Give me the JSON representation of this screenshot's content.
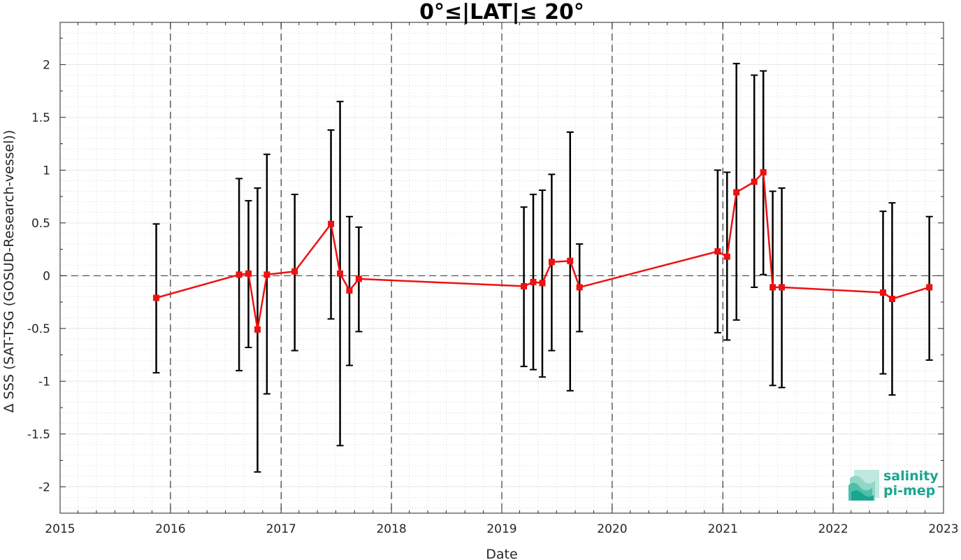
{
  "chart_data": {
    "type": "line",
    "title": "0°≤|LAT|≤ 20°",
    "xlabel": "Date",
    "ylabel": "Δ SSS (SAT-TSG (GOSUD-Research-vessel))",
    "xlim": [
      "2015-01-01",
      "2023-01-01"
    ],
    "ylim": [
      -2.25,
      2.4
    ],
    "x_ticks": [
      "2015",
      "2016",
      "2017",
      "2018",
      "2019",
      "2020",
      "2021",
      "2022",
      "2023"
    ],
    "y_ticks": [
      {
        "value": -2,
        "label": "-2"
      },
      {
        "value": -1.5,
        "label": "-1.5"
      },
      {
        "value": -1,
        "label": "-1"
      },
      {
        "value": -0.5,
        "label": "-0.5"
      },
      {
        "value": 0,
        "label": "0"
      },
      {
        "value": 0.5,
        "label": "0.5"
      },
      {
        "value": 1,
        "label": "1"
      },
      {
        "value": 1.5,
        "label": "1.5"
      },
      {
        "value": 2,
        "label": "2"
      }
    ],
    "vertical_dashed_lines": [
      "2016-01-01",
      "2017-01-01",
      "2018-01-01",
      "2019-01-01",
      "2020-01-01",
      "2021-01-01",
      "2022-01-01"
    ],
    "zero_line": true,
    "grid": true,
    "minor_grid": true,
    "series": [
      {
        "color": "#ee1111",
        "marker": "square",
        "errorbar_color": "#000000",
        "points": [
          {
            "x": "2015-11-15",
            "y": -0.21,
            "low": -0.92,
            "high": 0.49
          },
          {
            "x": "2016-08-15",
            "y": 0.01,
            "low": -0.9,
            "high": 0.92
          },
          {
            "x": "2016-09-15",
            "y": 0.02,
            "low": -0.68,
            "high": 0.71
          },
          {
            "x": "2016-10-15",
            "y": -0.51,
            "low": -1.86,
            "high": 0.83
          },
          {
            "x": "2016-11-15",
            "y": 0.01,
            "low": -1.12,
            "high": 1.15
          },
          {
            "x": "2017-02-15",
            "y": 0.04,
            "low": -0.71,
            "high": 0.77
          },
          {
            "x": "2017-06-15",
            "y": 0.49,
            "low": -0.41,
            "high": 1.38
          },
          {
            "x": "2017-07-15",
            "y": 0.02,
            "low": -1.61,
            "high": 1.65
          },
          {
            "x": "2017-08-15",
            "y": -0.14,
            "low": -0.85,
            "high": 0.56
          },
          {
            "x": "2017-09-15",
            "y": -0.03,
            "low": -0.53,
            "high": 0.46
          },
          {
            "x": "2019-03-15",
            "y": -0.1,
            "low": -0.86,
            "high": 0.65
          },
          {
            "x": "2019-04-15",
            "y": -0.06,
            "low": -0.89,
            "high": 0.77
          },
          {
            "x": "2019-05-15",
            "y": -0.07,
            "low": -0.96,
            "high": 0.81
          },
          {
            "x": "2019-06-15",
            "y": 0.13,
            "low": -0.71,
            "high": 0.96
          },
          {
            "x": "2019-08-15",
            "y": 0.14,
            "low": -1.09,
            "high": 1.36
          },
          {
            "x": "2019-09-15",
            "y": -0.11,
            "low": -0.53,
            "high": 0.3
          },
          {
            "x": "2020-12-15",
            "y": 0.23,
            "low": -0.54,
            "high": 1.0
          },
          {
            "x": "2021-01-15",
            "y": 0.18,
            "low": -0.61,
            "high": 0.98
          },
          {
            "x": "2021-02-15",
            "y": 0.79,
            "low": -0.42,
            "high": 2.01
          },
          {
            "x": "2021-04-15",
            "y": 0.89,
            "low": -0.11,
            "high": 1.9
          },
          {
            "x": "2021-05-15",
            "y": 0.98,
            "low": 0.01,
            "high": 1.94
          },
          {
            "x": "2021-06-15",
            "y": -0.11,
            "low": -1.04,
            "high": 0.8
          },
          {
            "x": "2021-07-15",
            "y": -0.11,
            "low": -1.06,
            "high": 0.83
          },
          {
            "x": "2022-06-15",
            "y": -0.16,
            "low": -0.93,
            "high": 0.61
          },
          {
            "x": "2022-07-15",
            "y": -0.22,
            "low": -1.13,
            "high": 0.69
          },
          {
            "x": "2022-11-15",
            "y": -0.11,
            "low": -0.8,
            "high": 0.56
          }
        ]
      }
    ]
  },
  "logo": {
    "line1": "salinity",
    "line2": "pi-mep",
    "color": "#1aa591"
  }
}
